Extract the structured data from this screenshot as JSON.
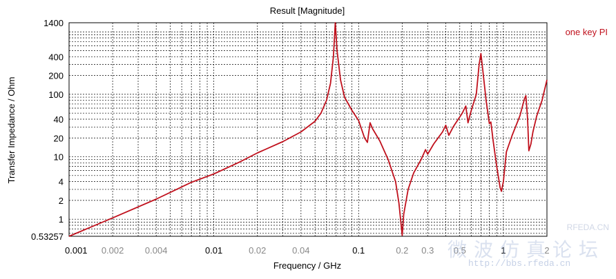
{
  "chart_data": {
    "type": "line",
    "title": "Result [Magnitude]",
    "xlabel": "Frequency / GHz",
    "ylabel": "Transfer Impedance / Ohm",
    "x_scale": "log",
    "y_scale": "log",
    "xlim": [
      0.001,
      2
    ],
    "ylim": [
      0.53257,
      1400
    ],
    "grid": true,
    "legend_position": "top-right",
    "x_ticks": [
      {
        "value": 0.001,
        "label": "0.001",
        "major": true
      },
      {
        "value": 0.002,
        "label": "0.002",
        "major": false
      },
      {
        "value": 0.004,
        "label": "0.004",
        "major": false
      },
      {
        "value": 0.01,
        "label": "0.01",
        "major": true
      },
      {
        "value": 0.02,
        "label": "0.02",
        "major": false
      },
      {
        "value": 0.04,
        "label": "0.04",
        "major": false
      },
      {
        "value": 0.1,
        "label": "0.1",
        "major": true
      },
      {
        "value": 0.2,
        "label": "0.2",
        "major": false
      },
      {
        "value": 0.3,
        "label": "0.3",
        "major": false
      },
      {
        "value": 0.5,
        "label": "0.5",
        "major": false
      },
      {
        "value": 1,
        "label": "1",
        "major": true
      },
      {
        "value": 2,
        "label": "2",
        "major": false
      }
    ],
    "y_ticks": [
      {
        "value": 0.53257,
        "label": "0.53257"
      },
      {
        "value": 1,
        "label": "1"
      },
      {
        "value": 2,
        "label": "2"
      },
      {
        "value": 4,
        "label": "4"
      },
      {
        "value": 10,
        "label": "10"
      },
      {
        "value": 20,
        "label": "20"
      },
      {
        "value": 40,
        "label": "40"
      },
      {
        "value": 100,
        "label": "100"
      },
      {
        "value": 200,
        "label": "200"
      },
      {
        "value": 400,
        "label": "400"
      },
      {
        "value": 1400,
        "label": "1400"
      }
    ],
    "series": [
      {
        "name": "one key PI",
        "color": "#c0101c",
        "points": [
          [
            0.001,
            0.53
          ],
          [
            0.002,
            1.05
          ],
          [
            0.004,
            2.1
          ],
          [
            0.007,
            3.9
          ],
          [
            0.01,
            5.3
          ],
          [
            0.015,
            8.2
          ],
          [
            0.02,
            11.5
          ],
          [
            0.03,
            17.5
          ],
          [
            0.04,
            25
          ],
          [
            0.05,
            37
          ],
          [
            0.055,
            50
          ],
          [
            0.06,
            80
          ],
          [
            0.064,
            150
          ],
          [
            0.067,
            400
          ],
          [
            0.069,
            1400
          ],
          [
            0.071,
            500
          ],
          [
            0.075,
            170
          ],
          [
            0.08,
            90
          ],
          [
            0.09,
            55
          ],
          [
            0.1,
            38
          ],
          [
            0.11,
            20
          ],
          [
            0.115,
            17
          ],
          [
            0.12,
            35
          ],
          [
            0.125,
            28
          ],
          [
            0.14,
            18
          ],
          [
            0.16,
            9
          ],
          [
            0.18,
            4
          ],
          [
            0.19,
            1.8
          ],
          [
            0.2,
            0.55
          ],
          [
            0.205,
            1.2
          ],
          [
            0.22,
            3
          ],
          [
            0.24,
            5.5
          ],
          [
            0.27,
            9
          ],
          [
            0.29,
            13
          ],
          [
            0.3,
            11
          ],
          [
            0.33,
            16
          ],
          [
            0.38,
            25
          ],
          [
            0.4,
            32
          ],
          [
            0.42,
            22
          ],
          [
            0.45,
            30
          ],
          [
            0.52,
            50
          ],
          [
            0.55,
            65
          ],
          [
            0.57,
            35
          ],
          [
            0.6,
            55
          ],
          [
            0.65,
            100
          ],
          [
            0.68,
            300
          ],
          [
            0.7,
            450
          ],
          [
            0.72,
            250
          ],
          [
            0.76,
            80
          ],
          [
            0.8,
            34
          ],
          [
            0.82,
            36
          ],
          [
            0.85,
            18
          ],
          [
            0.9,
            7
          ],
          [
            0.95,
            3.2
          ],
          [
            0.97,
            2.8
          ],
          [
            1.0,
            4
          ],
          [
            1.05,
            12
          ],
          [
            1.15,
            22
          ],
          [
            1.3,
            45
          ],
          [
            1.4,
            85
          ],
          [
            1.43,
            95
          ],
          [
            1.47,
            40
          ],
          [
            1.5,
            12.5
          ],
          [
            1.55,
            16
          ],
          [
            1.6,
            25
          ],
          [
            1.7,
            45
          ],
          [
            1.85,
            80
          ],
          [
            2.0,
            170
          ]
        ]
      }
    ]
  },
  "watermark": {
    "site": "RFEDA.CN",
    "forum": "微波仿真论坛",
    "url": "http://bbs.rfeda.cn"
  }
}
